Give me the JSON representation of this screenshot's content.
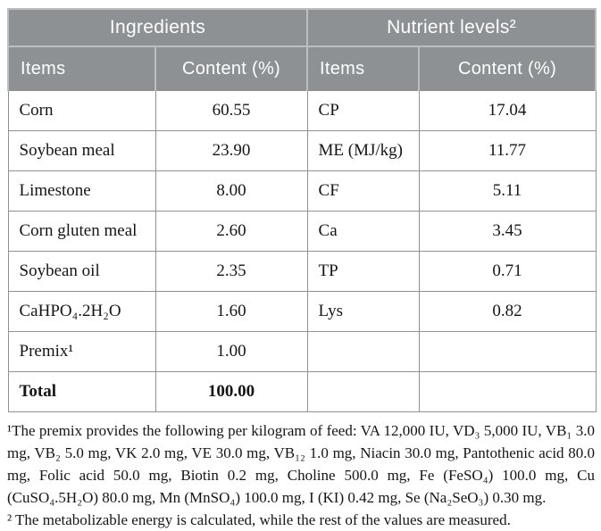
{
  "table": {
    "group_headers": {
      "ingredients": "Ingredients",
      "nutrients": "Nutrient levels²"
    },
    "column_headers": {
      "ingredient_items": "Items",
      "ingredient_content": "Content (%)",
      "nutrient_items": "Items",
      "nutrient_content": "Content (%)"
    },
    "rows": [
      {
        "ingredient": "Corn",
        "ingredient_content": "60.55",
        "nutrient": "CP",
        "nutrient_content": "17.04"
      },
      {
        "ingredient": "Soybean meal",
        "ingredient_content": "23.90",
        "nutrient": "ME (MJ/kg)",
        "nutrient_content": "11.77"
      },
      {
        "ingredient": "Limestone",
        "ingredient_content": "8.00",
        "nutrient": "CF",
        "nutrient_content": "5.11"
      },
      {
        "ingredient": "Corn gluten meal",
        "ingredient_content": "2.60",
        "nutrient": "Ca",
        "nutrient_content": "3.45"
      },
      {
        "ingredient": "Soybean oil",
        "ingredient_content": "2.35",
        "nutrient": "TP",
        "nutrient_content": "0.71"
      },
      {
        "ingredient": "CaHPO₄.2H₂O",
        "ingredient_content": "1.60",
        "nutrient": "Lys",
        "nutrient_content": "0.82"
      },
      {
        "ingredient": "Premix¹",
        "ingredient_content": "1.00",
        "nutrient": "",
        "nutrient_content": ""
      },
      {
        "ingredient": "Total",
        "ingredient_content": "100.00",
        "nutrient": "",
        "nutrient_content": ""
      }
    ],
    "footnotes": {
      "premix": "¹The premix provides the following per kilogram of feed: VA 12,000 IU, VD₃ 5,000 IU, VB₁ 3.0 mg, VB₂ 5.0 mg, VK 2.0 mg, VE 30.0 mg, VB₁₂ 1.0 mg, Niacin 30.0 mg, Pantothenic acid 80.0 mg, Folic acid 50.0 mg, Biotin 0.2 mg, Choline 500.0 mg, Fe (FeSO₄) 100.0 mg, Cu (CuSO₄.5H₂O) 80.0 mg, Mn (MnSO₄) 100.0 mg, I (KI) 0.42 mg, Se (Na₂SeO₃) 0.30 mg.",
      "energy": "² The metabolizable energy is calculated, while the rest of the values are measured."
    },
    "colors": {
      "header_bg": "#8d9194",
      "header_text": "#ffffff",
      "header_divider": "#bcbec0",
      "body_border": "#8f9295",
      "body_text": "#151515"
    }
  }
}
